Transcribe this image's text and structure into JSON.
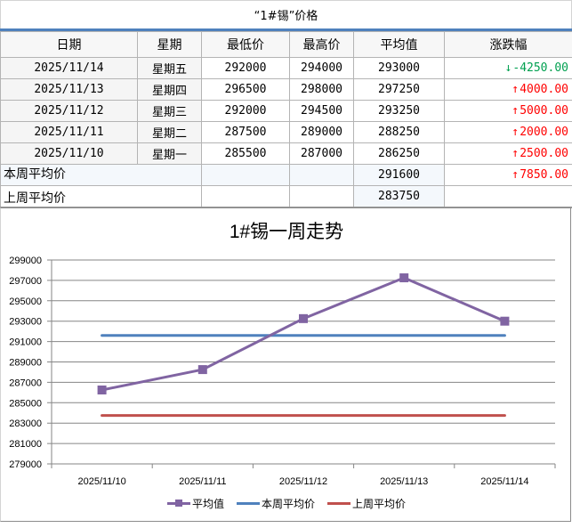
{
  "title": "“1#锡”价格",
  "table": {
    "headers": [
      "日期",
      "星期",
      "最低价",
      "最高价",
      "平均值",
      "涨跌幅"
    ],
    "rows": [
      {
        "date": "2025/11/14",
        "weekday": "星期五",
        "low": "292000",
        "high": "294000",
        "avg": "293000",
        "change": "-4250.00",
        "dir": "down",
        "arrow": "↓"
      },
      {
        "date": "2025/11/13",
        "weekday": "星期四",
        "low": "296500",
        "high": "298000",
        "avg": "297250",
        "change": "4000.00",
        "dir": "up",
        "arrow": "↑"
      },
      {
        "date": "2025/11/12",
        "weekday": "星期三",
        "low": "292000",
        "high": "294500",
        "avg": "293250",
        "change": "5000.00",
        "dir": "up",
        "arrow": "↑"
      },
      {
        "date": "2025/11/11",
        "weekday": "星期二",
        "low": "287500",
        "high": "289000",
        "avg": "288250",
        "change": "2000.00",
        "dir": "up",
        "arrow": "↑"
      },
      {
        "date": "2025/11/10",
        "weekday": "星期一",
        "low": "285500",
        "high": "287000",
        "avg": "286250",
        "change": "2500.00",
        "dir": "up",
        "arrow": "↑"
      }
    ],
    "this_week": {
      "label": "本周平均价",
      "avg": "291600",
      "change": "7850.00",
      "dir": "up",
      "arrow": "↑"
    },
    "last_week": {
      "label": "上周平均价",
      "avg": "283750"
    }
  },
  "colors": {
    "header_rule": "#4f81bd",
    "up": "#ff0000",
    "down": "#00a050",
    "series_avg": "#8064a2",
    "series_this_week": "#4f81bd",
    "series_last_week": "#c0504d"
  },
  "chart_data": {
    "type": "line",
    "title": "1#锡一周走势",
    "xlabel": "",
    "ylabel": "",
    "categories": [
      "2025/11/10",
      "2025/11/11",
      "2025/11/12",
      "2025/11/13",
      "2025/11/14"
    ],
    "series": [
      {
        "name": "平均值",
        "values": [
          286250,
          288250,
          293250,
          297250,
          293000
        ],
        "color": "#8064a2",
        "marker": "square"
      },
      {
        "name": "本周平均价",
        "values": [
          291600,
          291600,
          291600,
          291600,
          291600
        ],
        "color": "#4f81bd"
      },
      {
        "name": "上周平均价",
        "values": [
          283750,
          283750,
          283750,
          283750,
          283750
        ],
        "color": "#c0504d"
      }
    ],
    "ylim": [
      279000,
      299000
    ],
    "yticks": [
      "299000",
      "297000",
      "295000",
      "293000",
      "291000",
      "289000",
      "287000",
      "285000",
      "283000",
      "281000",
      "279000"
    ],
    "grid": true,
    "legend_position": "bottom"
  }
}
